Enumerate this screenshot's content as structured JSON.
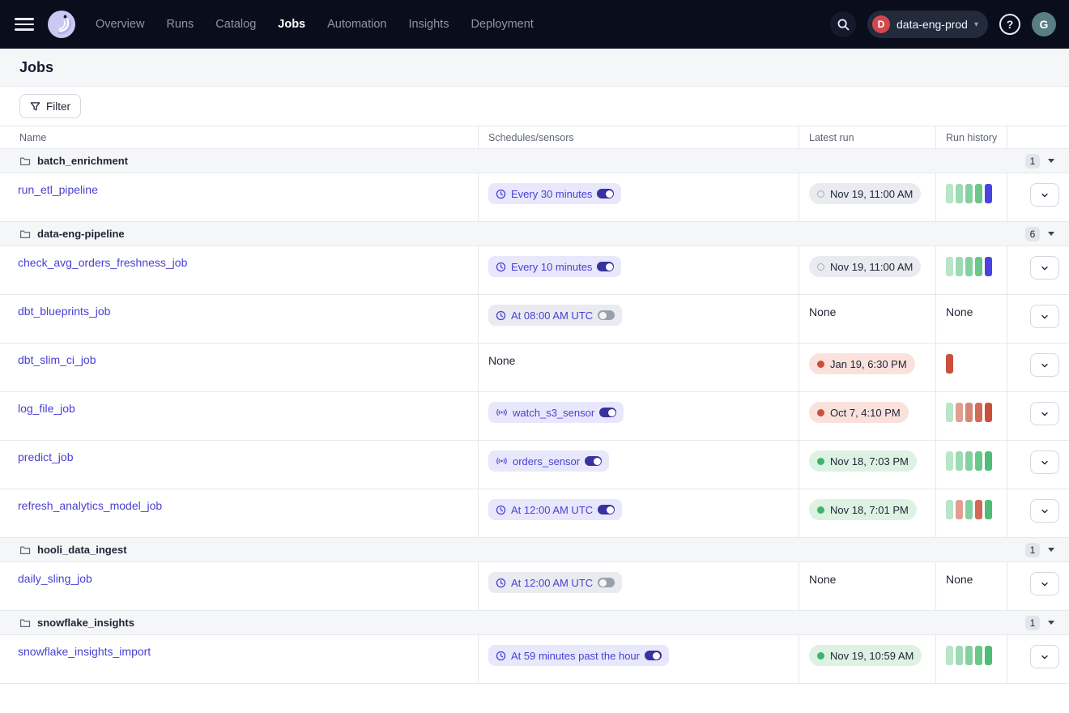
{
  "nav": {
    "items": [
      {
        "label": "Overview",
        "active": false
      },
      {
        "label": "Runs",
        "active": false
      },
      {
        "label": "Catalog",
        "active": false
      },
      {
        "label": "Jobs",
        "active": true
      },
      {
        "label": "Automation",
        "active": false
      },
      {
        "label": "Insights",
        "active": false
      },
      {
        "label": "Deployment",
        "active": false
      }
    ],
    "deployment": {
      "badge": "D",
      "label": "data-eng-prod"
    },
    "help_label": "?",
    "avatar_initial": "G"
  },
  "page": {
    "title": "Jobs"
  },
  "toolbar": {
    "filter_label": "Filter"
  },
  "table": {
    "columns": [
      "Name",
      "Schedules/sensors",
      "Latest run",
      "Run history",
      ""
    ]
  },
  "labels": {
    "none": "None"
  },
  "colors": {
    "accent_blurple": "#4a3fd4",
    "success_green": "#4fbd77",
    "failure_red": "#c8503c",
    "in_progress_blue": "#4a43e2",
    "deployment_badge_red": "#d2474e",
    "avatar_teal": "#597f85",
    "nav_background": "#0a0d1c"
  },
  "groups": [
    {
      "name": "batch_enrichment",
      "count": "1",
      "jobs": [
        {
          "name": "run_etl_pipeline",
          "schedule": {
            "kind": "schedule",
            "label": "Every 30 minutes",
            "enabled": true
          },
          "latest_run": {
            "status": "in_progress",
            "label": "Nov 19, 11:00 AM"
          },
          "run_history": [
            "success",
            "success",
            "success",
            "success",
            "in_progress"
          ]
        }
      ]
    },
    {
      "name": "data-eng-pipeline",
      "count": "6",
      "jobs": [
        {
          "name": "check_avg_orders_freshness_job",
          "schedule": {
            "kind": "schedule",
            "label": "Every 10 minutes",
            "enabled": true
          },
          "latest_run": {
            "status": "in_progress",
            "label": "Nov 19, 11:00 AM"
          },
          "run_history": [
            "success",
            "success",
            "success",
            "success",
            "in_progress"
          ]
        },
        {
          "name": "dbt_blueprints_job",
          "schedule": {
            "kind": "schedule",
            "label": "At 08:00 AM UTC",
            "enabled": false
          },
          "latest_run": {
            "status": "none",
            "label": ""
          },
          "run_history": null
        },
        {
          "name": "dbt_slim_ci_job",
          "schedule": {
            "kind": "none",
            "label": "",
            "enabled": false
          },
          "latest_run": {
            "status": "failure",
            "label": "Jan 19, 6:30 PM"
          },
          "run_history": [
            "failure"
          ]
        },
        {
          "name": "log_file_job",
          "schedule": {
            "kind": "sensor",
            "label": "watch_s3_sensor",
            "enabled": true
          },
          "latest_run": {
            "status": "failure",
            "label": "Oct 7, 4:10 PM"
          },
          "run_history": [
            "success",
            "failure",
            "failure",
            "failure",
            "failure"
          ]
        },
        {
          "name": "predict_job",
          "schedule": {
            "kind": "sensor",
            "label": "orders_sensor",
            "enabled": true
          },
          "latest_run": {
            "status": "success",
            "label": "Nov 18, 7:03 PM"
          },
          "run_history": [
            "success",
            "success",
            "success",
            "success",
            "success"
          ]
        },
        {
          "name": "refresh_analytics_model_job",
          "schedule": {
            "kind": "schedule",
            "label": "At 12:00 AM UTC",
            "enabled": true
          },
          "latest_run": {
            "status": "success",
            "label": "Nov 18, 7:01 PM"
          },
          "run_history": [
            "success",
            "failure",
            "success",
            "failure",
            "success"
          ]
        }
      ]
    },
    {
      "name": "hooli_data_ingest",
      "count": "1",
      "jobs": [
        {
          "name": "daily_sling_job",
          "schedule": {
            "kind": "schedule",
            "label": "At 12:00 AM UTC",
            "enabled": false
          },
          "latest_run": {
            "status": "none",
            "label": ""
          },
          "run_history": null
        }
      ]
    },
    {
      "name": "snowflake_insights",
      "count": "1",
      "jobs": [
        {
          "name": "snowflake_insights_import",
          "schedule": {
            "kind": "schedule",
            "label": "At 59 minutes past the hour",
            "enabled": true
          },
          "latest_run": {
            "status": "success",
            "label": "Nov 19, 10:59 AM"
          },
          "run_history": [
            "success",
            "success",
            "success",
            "success",
            "success"
          ]
        }
      ]
    }
  ]
}
